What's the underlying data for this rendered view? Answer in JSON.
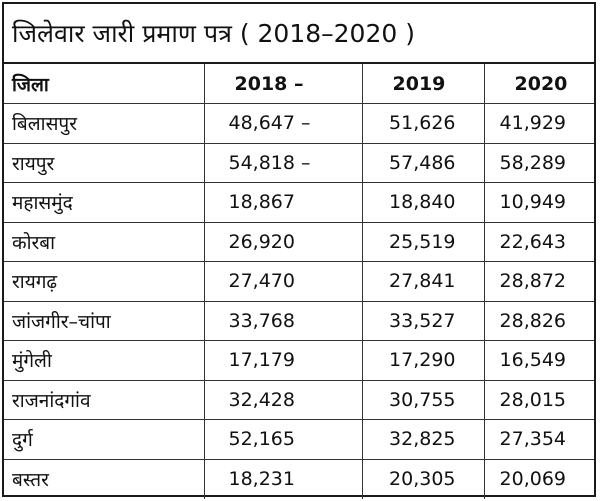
{
  "title": "जिलेवार जारी प्रमाण पत्र ( 2018–2020 )",
  "headers": [
    "जिला",
    "2018 –",
    "2019",
    "2020"
  ],
  "rows": [
    [
      "बिलासपुर",
      "48,647 –",
      "51,626",
      "41,929"
    ],
    [
      "रायपुर",
      "54,818 –",
      "57,486",
      "58,289"
    ],
    [
      "महासमुंद",
      "18,867",
      "18,840",
      "10,949"
    ],
    [
      "कोरबा",
      "26,920",
      "25,519",
      "22,643"
    ],
    [
      "रायगढ़",
      "27,470",
      "27,841",
      "28,872"
    ],
    [
      "जांजगीर–चांपा",
      "33,768",
      "33,527",
      "28,826"
    ],
    [
      "मुंगेली",
      "17,179",
      "17,290",
      "16,549"
    ],
    [
      "राजनांदगांव",
      "32,428",
      "30,755",
      "28,015"
    ],
    [
      "दुर्ग",
      "52,165",
      "32,825",
      "27,354"
    ],
    [
      "बस्तर",
      "18,231",
      "20,305",
      "20,069"
    ]
  ]
}
